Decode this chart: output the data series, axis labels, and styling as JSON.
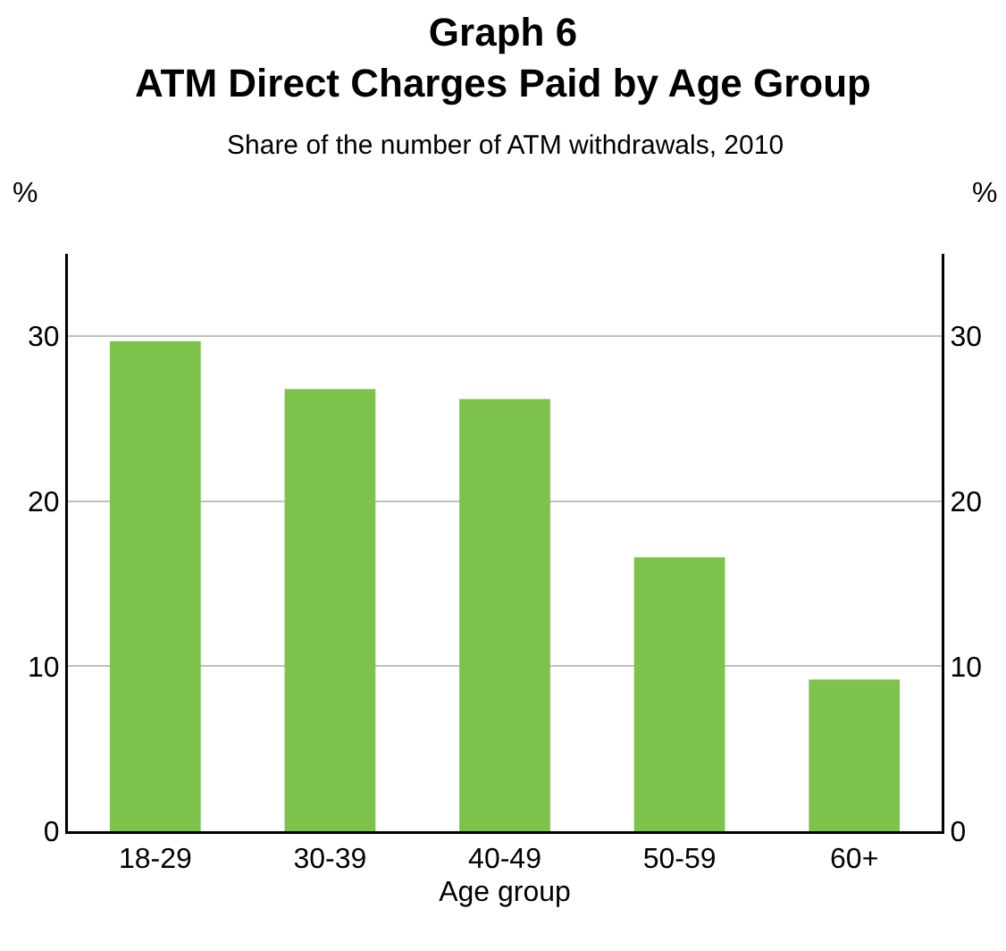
{
  "chart_data": {
    "type": "bar",
    "title": "Graph 6\nATM Direct Charges Paid by Age Group",
    "subtitle": "Share of the number of ATM withdrawals, 2010",
    "xlabel": "Age group",
    "ylabel": "%",
    "y2label": "%",
    "categories": [
      "18-29",
      "30-39",
      "40-49",
      "50-59",
      "60+"
    ],
    "values": [
      29.7,
      26.8,
      26.2,
      16.6,
      9.2
    ],
    "color": "#7dc24a",
    "ylim": [
      0,
      35
    ],
    "yticks": [
      0,
      10,
      20,
      30
    ],
    "y2lim": [
      0,
      35
    ],
    "y2ticks": [
      0,
      10,
      20,
      30
    ],
    "grid": "y",
    "legend": false
  }
}
